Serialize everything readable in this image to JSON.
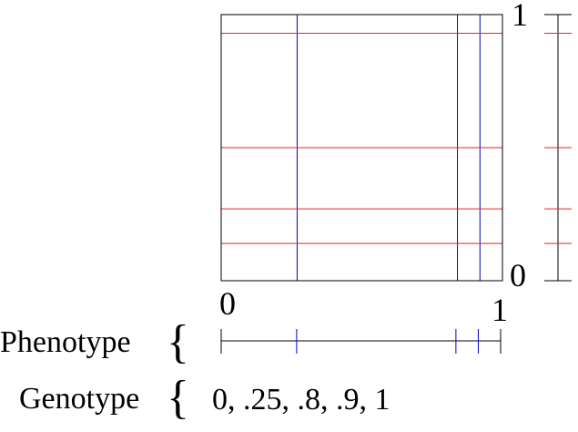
{
  "diagram": {
    "square_top_label": "1",
    "square_bottom_label": "0",
    "square_left_label": "0",
    "square_right_label": "1",
    "phenotype_label": "Phenotype",
    "genotype_label": "Genotype",
    "genotype_values": "0, .25, .8, .9, 1",
    "brace_symbol": "{",
    "vertical_lines_x": [
      0.27,
      0.84,
      0.92
    ],
    "horizontal_lines_y": [
      0.93,
      0.5,
      0.27,
      0.14
    ],
    "phenotype_ticks": [
      0,
      0.27,
      0.84,
      0.92,
      1
    ],
    "colors": {
      "frame": "#000000",
      "vertical_lines": "#0000cc",
      "horizontal_lines": "#ee2222",
      "axis": "#000000"
    }
  }
}
